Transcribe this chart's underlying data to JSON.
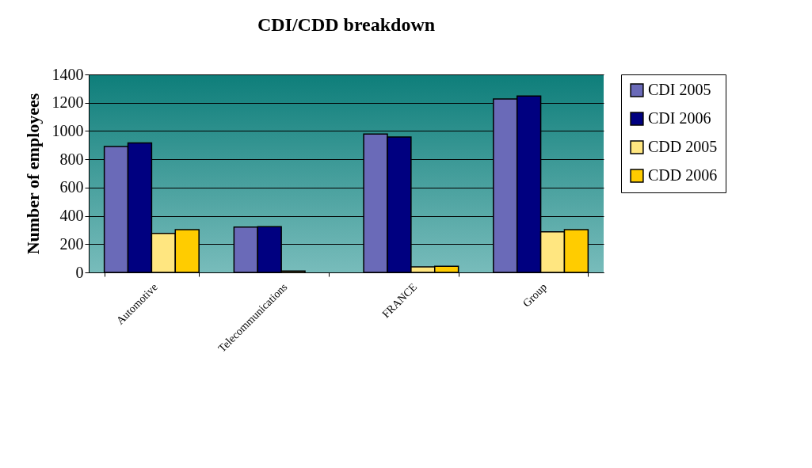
{
  "chart_data": {
    "type": "bar",
    "title": "CDI/CDD breakdown",
    "ylabel": "Number of employees",
    "categories": [
      "Automotive",
      "Telecommunications",
      "FRANCE",
      "Group"
    ],
    "series": [
      {
        "name": "CDI 2005",
        "color": "#6a6ab8",
        "values": [
          890,
          320,
          978,
          1226
        ]
      },
      {
        "name": "CDI 2006",
        "color": "#000080",
        "values": [
          915,
          323,
          957,
          1248
        ]
      },
      {
        "name": "CDD 2005",
        "color": "#ffe680",
        "values": [
          276,
          10,
          39,
          287
        ]
      },
      {
        "name": "CDD 2006",
        "color": "#ffcc00",
        "values": [
          302,
          null,
          43,
          302
        ]
      }
    ],
    "ylim": [
      0,
      1400
    ],
    "yticks": [
      0,
      200,
      400,
      600,
      800,
      1000,
      1200,
      1400
    ],
    "grid": "y",
    "legend": "right"
  }
}
